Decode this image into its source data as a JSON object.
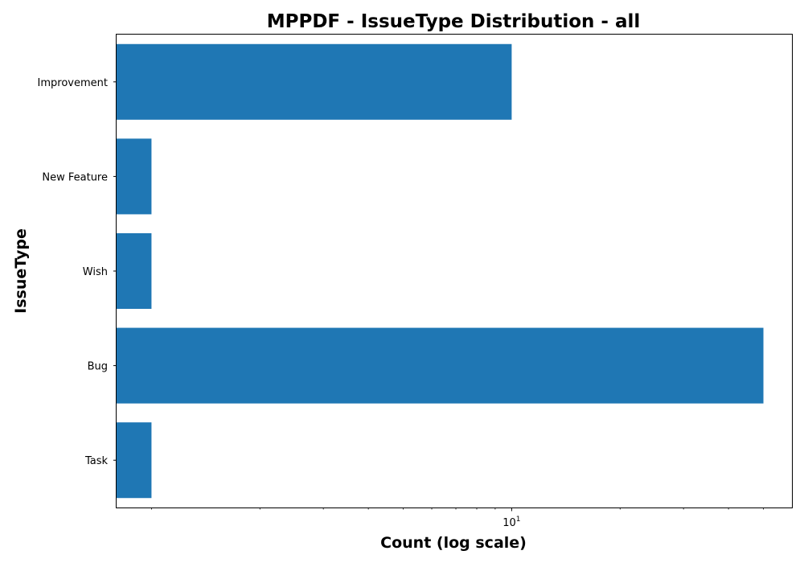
{
  "chart_data": {
    "type": "bar",
    "orientation": "horizontal",
    "title": "MPPDF - IssueType Distribution - all",
    "xlabel": "Count (log scale)",
    "ylabel": "IssueType",
    "xscale": "log",
    "xlim": [
      0.8,
      60
    ],
    "categories": [
      "Improvement",
      "New Feature",
      "Wish",
      "Bug",
      "Task"
    ],
    "values": [
      10,
      1,
      1,
      50,
      1
    ],
    "x_ticks": [
      {
        "value": 10,
        "base": "10",
        "exp": "1"
      }
    ],
    "minor_x_ticks": [
      1,
      2,
      3,
      4,
      5,
      6,
      7,
      8,
      9,
      20,
      30,
      40,
      50
    ],
    "bar_color": "#1f77b4",
    "grid": false,
    "legend": "none"
  }
}
